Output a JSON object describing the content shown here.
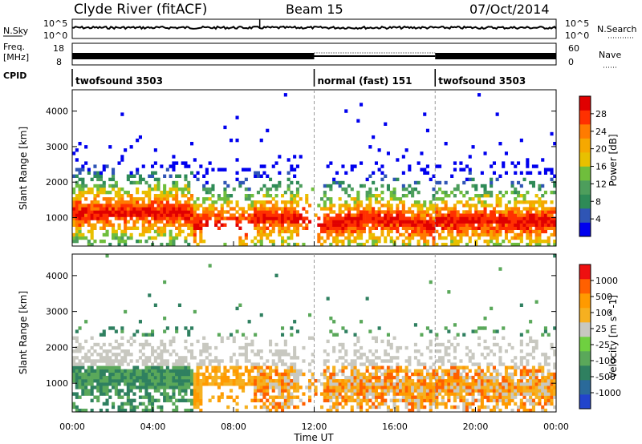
{
  "header": {
    "station": "Clyde River (fitACF)",
    "beam": "Beam 15",
    "date": "07/Oct/2014"
  },
  "panels": {
    "nsky": {
      "label": "N.Sky",
      "ticks": [
        "10^5",
        "10^0"
      ],
      "right_label": "N.Search",
      "right_ticks": [
        "10^5",
        "10^0"
      ]
    },
    "freq": {
      "label_line1": "Freq.",
      "label_line2": "[MHz]",
      "ticks": [
        "18",
        "8"
      ],
      "right_label": "Nave",
      "right_ticks": [
        "60",
        "0"
      ]
    },
    "cpid": {
      "label": "CPID",
      "segments": [
        {
          "name": "twofsound 3503",
          "start": 0,
          "end": 12
        },
        {
          "name": "normal (fast) 151",
          "start": 12,
          "end": 18
        },
        {
          "name": "twofsound 3503",
          "start": 18,
          "end": 24
        }
      ]
    }
  },
  "chart_data": [
    {
      "type": "heatmap",
      "title": "",
      "ylabel": "Slant Range [km]",
      "xlabel": "",
      "yticks": [
        "1000",
        "2000",
        "3000",
        "4000"
      ],
      "ylim": [
        200,
        4600
      ],
      "xlim": [
        0,
        24
      ],
      "colorbar": {
        "label": "Power [dB]",
        "ticks": [
          "4",
          "8",
          "12",
          "16",
          "20",
          "24",
          "28"
        ],
        "colors": [
          "#0000ee",
          "#2f55b5",
          "#2e8b57",
          "#4d9e5c",
          "#6fbe3c",
          "#e8c000",
          "#f6a800",
          "#ff7b00",
          "#ff3000",
          "#e00000"
        ]
      }
    },
    {
      "type": "heatmap",
      "title": "",
      "ylabel": "Slant Range [km]",
      "xlabel": "Time UT",
      "yticks": [
        "1000",
        "2000",
        "3000",
        "4000"
      ],
      "xticks": [
        "00:00",
        "04:00",
        "08:00",
        "12:00",
        "16:00",
        "20:00",
        "00:00"
      ],
      "ylim": [
        200,
        4600
      ],
      "xlim": [
        0,
        24
      ],
      "colorbar": {
        "label": "Velocity [m s^-1]",
        "ticks": [
          "1000",
          "500",
          "100",
          "25",
          "-25",
          "-100",
          "-500",
          "-1000"
        ],
        "colors": [
          "#2244cc",
          "#2a6a9a",
          "#2f8060",
          "#5aa85a",
          "#6fd040",
          "#c8c8c0",
          "#f6b020",
          "#ff9a00",
          "#ff6000",
          "#ee1010"
        ]
      }
    }
  ]
}
